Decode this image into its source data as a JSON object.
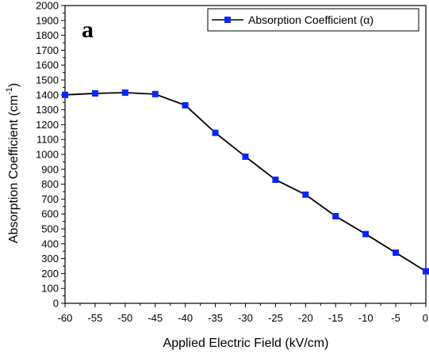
{
  "chart_data": {
    "type": "line",
    "panel_label": "a",
    "xlabel": "Applied Electric Field (kV/cm)",
    "ylabel": "Absorption Coefficient (cm",
    "ylabel_superscript": "-1",
    "ylabel_suffix": ")",
    "xlim": [
      -60,
      0
    ],
    "ylim": [
      0,
      2000
    ],
    "x_ticks": [
      "-60",
      "-55",
      "-50",
      "-45",
      "-40",
      "-35",
      "-30",
      "-25",
      "-20",
      "-15",
      "-10",
      "-5",
      "0"
    ],
    "y_ticks": [
      "0",
      "100",
      "200",
      "300",
      "400",
      "500",
      "600",
      "700",
      "800",
      "900",
      "1000",
      "1100",
      "1200",
      "1300",
      "1400",
      "1500",
      "1600",
      "1700",
      "1800",
      "1900",
      "2000"
    ],
    "grid": false,
    "legend_position": "top-right",
    "series": [
      {
        "name": "Absorption Coefficient (α)",
        "color": "#0a24ff",
        "line_color": "#000000",
        "marker": "square",
        "x": [
          -60,
          -55,
          -50,
          -45,
          -40,
          -35,
          -30,
          -25,
          -20,
          -15,
          -10,
          -5,
          0
        ],
        "y": [
          1400,
          1410,
          1415,
          1405,
          1330,
          1145,
          985,
          830,
          730,
          585,
          465,
          340,
          215
        ]
      }
    ]
  }
}
